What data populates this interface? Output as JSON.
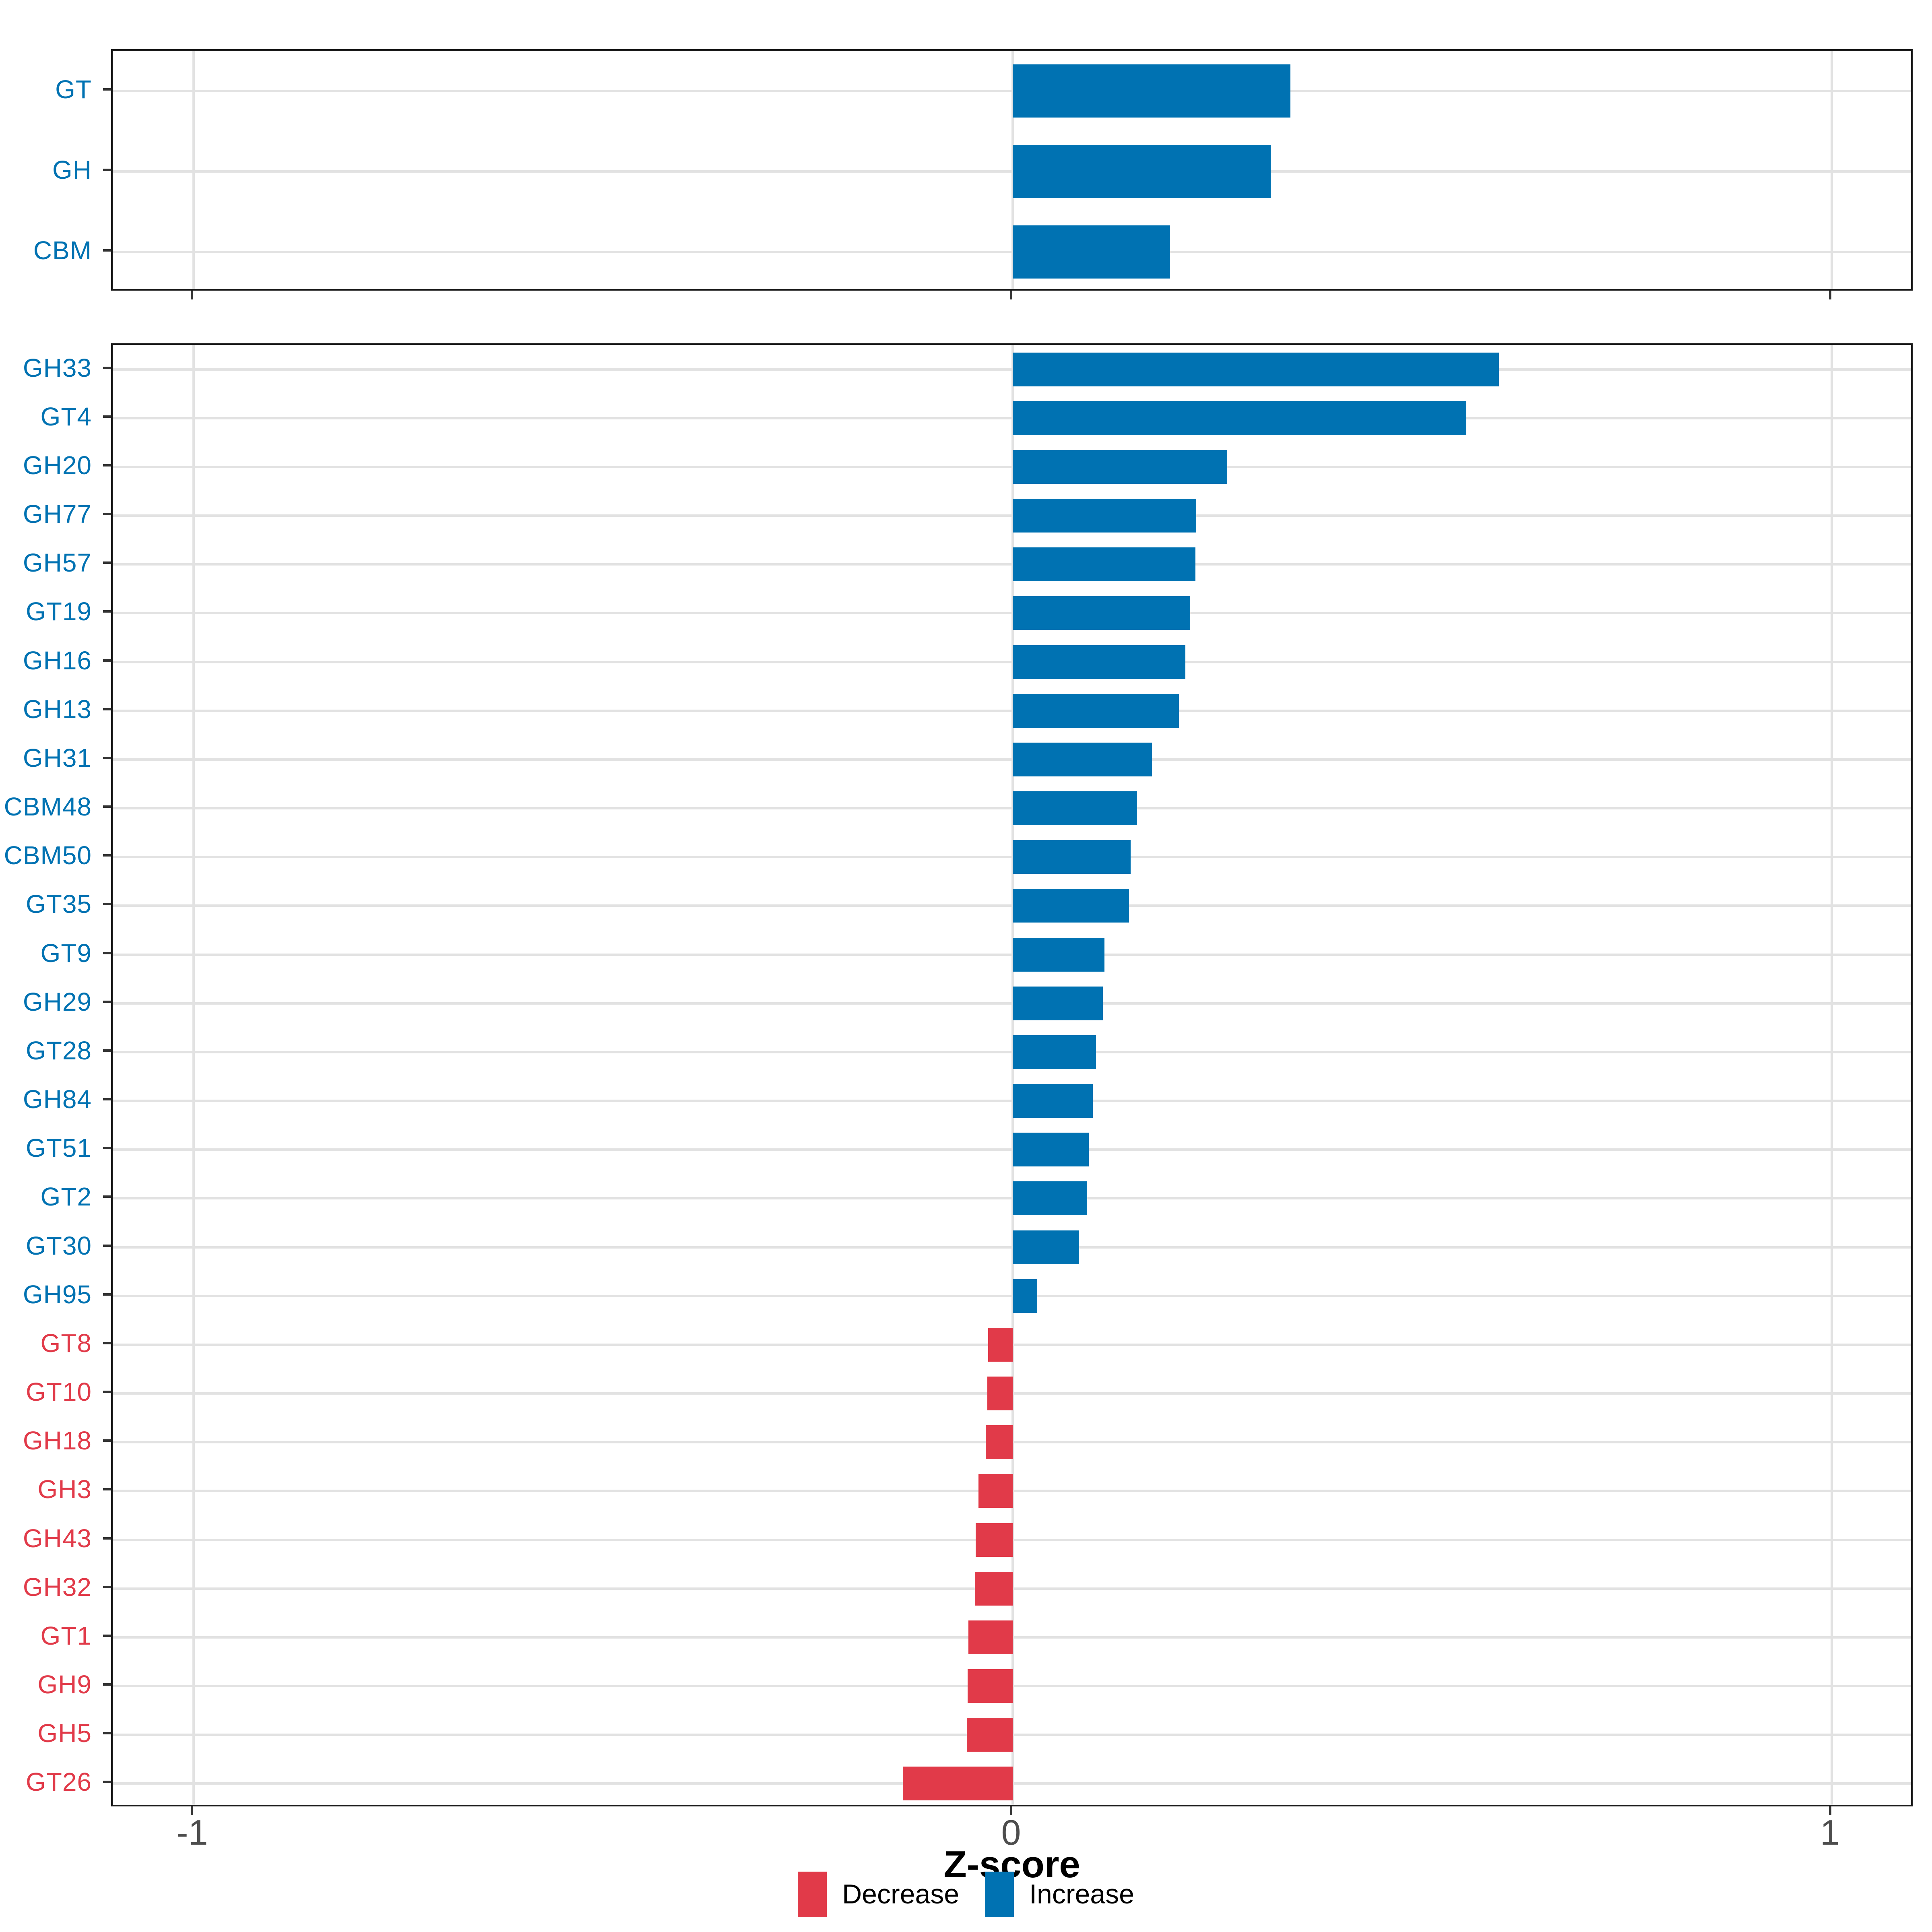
{
  "chart_data": {
    "type": "bar",
    "orientation": "horizontal",
    "title": "",
    "xlabel": "Z-score",
    "ylabel": "",
    "x_domain": [
      -1.099,
      1.101
    ],
    "x_ticks": [
      -1,
      0,
      1
    ],
    "x_tick_labels": [
      "-1",
      "0",
      "1"
    ],
    "grid": "on",
    "legend_position": "bottom",
    "colors": {
      "increase": "#0072B2",
      "decrease": "#E13A49"
    },
    "legend": [
      {
        "label": "Decrease",
        "color": "#E13A49"
      },
      {
        "label": "Increase",
        "color": "#0072B2"
      }
    ],
    "panels": [
      {
        "name": "cazyme-classes",
        "categories": [
          "GT",
          "GH",
          "CBM"
        ],
        "values": [
          0.339,
          0.315,
          0.192
        ],
        "directions": [
          "increase",
          "increase",
          "increase"
        ]
      },
      {
        "name": "cazyme-families",
        "categories": [
          "GH33",
          "GT4",
          "GH20",
          "GH77",
          "GH57",
          "GT19",
          "GH16",
          "GH13",
          "GH31",
          "CBM48",
          "CBM50",
          "GT35",
          "GT9",
          "GH29",
          "GT28",
          "GH84",
          "GT51",
          "GT2",
          "GT30",
          "GH95",
          "GT8",
          "GT10",
          "GH18",
          "GH3",
          "GH43",
          "GH32",
          "GT1",
          "GH9",
          "GH5",
          "GT26"
        ],
        "values": [
          0.594,
          0.554,
          0.262,
          0.224,
          0.223,
          0.217,
          0.211,
          0.203,
          0.17,
          0.152,
          0.144,
          0.142,
          0.112,
          0.11,
          0.102,
          0.098,
          0.093,
          0.091,
          0.081,
          0.03,
          -0.03,
          -0.031,
          -0.033,
          -0.042,
          -0.045,
          -0.046,
          -0.054,
          -0.055,
          -0.056,
          -0.134
        ],
        "directions": [
          "increase",
          "increase",
          "increase",
          "increase",
          "increase",
          "increase",
          "increase",
          "increase",
          "increase",
          "increase",
          "increase",
          "increase",
          "increase",
          "increase",
          "increase",
          "increase",
          "increase",
          "increase",
          "increase",
          "increase",
          "decrease",
          "decrease",
          "decrease",
          "decrease",
          "decrease",
          "decrease",
          "decrease",
          "decrease",
          "decrease",
          "decrease"
        ]
      }
    ]
  }
}
